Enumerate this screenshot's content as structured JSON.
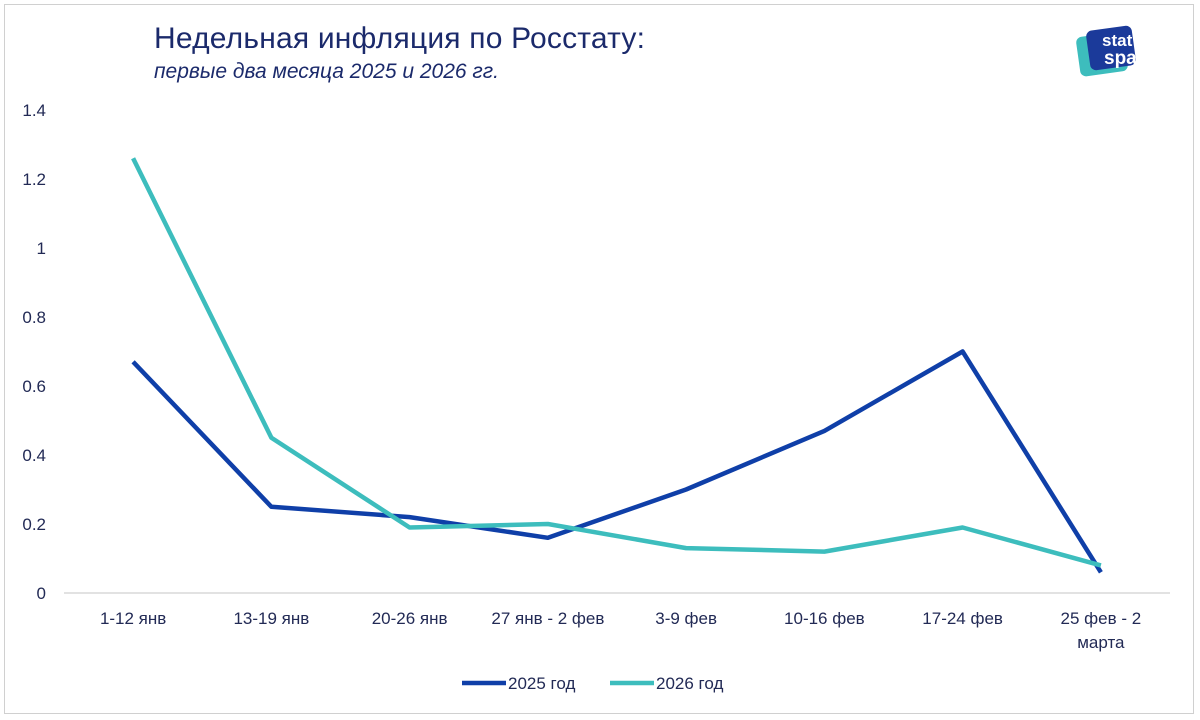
{
  "chart_data": {
    "type": "line",
    "title": "Недельная инфляция по Росстату:",
    "subtitle": "первые два месяца 2025 и 2026 гг.",
    "categories": [
      [
        "1-12 янв"
      ],
      [
        "13-19 янв"
      ],
      [
        "20-26 янв"
      ],
      [
        "27 янв - 2 фев"
      ],
      [
        "3-9 фев"
      ],
      [
        "10-16 фев"
      ],
      [
        "17-24 фев"
      ],
      [
        "25 фев - 2",
        "марта"
      ]
    ],
    "ylim": [
      0,
      1.4
    ],
    "yticks": [
      0,
      0.2,
      0.4,
      0.6,
      0.8,
      1,
      1.2,
      1.4
    ],
    "ytick_labels": [
      "0",
      "0.2",
      "0.4",
      "0.6",
      "0.8",
      "1",
      "1.2",
      "1.4"
    ],
    "grid": false,
    "legend_position": "bottom",
    "series": [
      {
        "name": "2025 год",
        "color": "#0f3fa8",
        "values": [
          0.67,
          0.25,
          0.22,
          0.16,
          0.3,
          0.47,
          0.7,
          0.06
        ]
      },
      {
        "name": "2026 год",
        "color": "#3dbdbd",
        "values": [
          1.26,
          0.45,
          0.19,
          0.2,
          0.13,
          0.12,
          0.19,
          0.08
        ]
      }
    ]
  },
  "logo": {
    "line1": "stat",
    "line2": "space"
  }
}
